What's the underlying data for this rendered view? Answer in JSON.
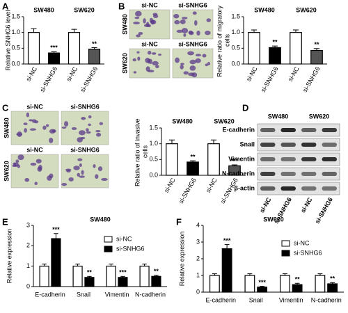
{
  "chart_data": [
    {
      "panel": "A",
      "type": "bar",
      "group_labels": [
        "SW480",
        "SW620"
      ],
      "y_label": "Relative SNHG6 level",
      "categories": [
        "si-NC",
        "si-SNHG6",
        "si-NC",
        "si-SNHG6"
      ],
      "values": [
        1.0,
        0.35,
        1.0,
        0.47
      ],
      "errors": [
        0.12,
        0.04,
        0.1,
        0.05
      ],
      "colors": [
        "#ffffff",
        "#000000",
        "#ffffff",
        "#555555"
      ],
      "annotations": [
        null,
        "***",
        null,
        "**"
      ],
      "ylim": [
        0,
        1.5
      ],
      "yticks": [
        {
          "value": 0,
          "label": "0.0"
        },
        {
          "value": 0.5,
          "label": "0.5"
        },
        {
          "value": 1,
          "label": "1.0"
        },
        {
          "value": 1.5,
          "label": "1.5"
        }
      ]
    },
    {
      "type": "bar",
      "group_labels": [
        "SW480",
        "SW620"
      ],
      "y_label": "Relative ratio of migratory cells",
      "categories": [
        "si-NC",
        "si-SNHG6",
        "si-NC",
        "si-SNHG6"
      ],
      "values": [
        1.0,
        0.52,
        1.0,
        0.43
      ],
      "errors": [
        0.08,
        0.05,
        0.08,
        0.06
      ],
      "colors": [
        "#ffffff",
        "#000000",
        "#ffffff",
        "#555555"
      ],
      "annotations": [
        null,
        "**",
        null,
        "**"
      ],
      "ylim": [
        0,
        1.5
      ],
      "yticks": [
        {
          "value": 0,
          "label": "0.0"
        },
        {
          "value": 0.5,
          "label": "0.5"
        },
        {
          "value": 1,
          "label": "1.0"
        },
        {
          "value": 1.5,
          "label": "1.5"
        }
      ]
    },
    {
      "type": "bar",
      "group_labels": [
        "SW480",
        "SW620"
      ],
      "y_label": "Relative ratio of invasive cells",
      "categories": [
        "si-NC",
        "si-SNHG6",
        "si-NC",
        "si-SNHG6"
      ],
      "values": [
        1.0,
        0.42,
        1.0,
        0.3
      ],
      "errors": [
        0.12,
        0.04,
        0.12,
        0.03
      ],
      "colors": [
        "#ffffff",
        "#000000",
        "#ffffff",
        "#555555"
      ],
      "annotations": [
        null,
        "**",
        null,
        "***"
      ],
      "ylim": [
        0,
        1.5
      ],
      "yticks": [
        {
          "value": 0,
          "label": "0.0"
        },
        {
          "value": 0.5,
          "label": "0.5"
        },
        {
          "value": 1,
          "label": "1.0"
        },
        {
          "value": 1.5,
          "label": "1.5"
        }
      ]
    },
    {
      "panel": "E",
      "type": "grouped_bar",
      "title": "SW480",
      "y_label": "Relative expression",
      "categories": [
        "E-cadherin",
        "Snail",
        "Vimentin",
        "N-cadherin"
      ],
      "series": [
        {
          "name": "si-NC",
          "color": "#ffffff",
          "values": [
            1,
            1,
            1,
            1
          ],
          "errors": [
            0.1,
            0.1,
            0.1,
            0.1
          ],
          "annotations": [
            null,
            null,
            null,
            null
          ]
        },
        {
          "name": "si-SNHG6",
          "color": "#000000",
          "values": [
            2.35,
            0.45,
            0.45,
            0.5
          ],
          "errors": [
            0.25,
            0.05,
            0.05,
            0.05
          ],
          "annotations": [
            "***",
            "**",
            "***",
            "**"
          ]
        }
      ],
      "ylim": [
        0,
        3
      ],
      "yticks": [
        0,
        1,
        2,
        3
      ],
      "legend": "upper right"
    },
    {
      "panel": "F",
      "type": "grouped_bar",
      "title": "SW620",
      "y_label": "Relative expression",
      "categories": [
        "E-cadherin",
        "Snail",
        "Vimentin",
        "N-cadherin"
      ],
      "series": [
        {
          "name": "si-NC",
          "color": "#ffffff",
          "values": [
            1,
            1,
            1,
            1
          ],
          "errors": [
            0.1,
            0.1,
            0.1,
            0.1
          ],
          "annotations": [
            null,
            null,
            null,
            null
          ]
        },
        {
          "name": "si-SNHG6",
          "color": "#000000",
          "values": [
            2.6,
            0.3,
            0.45,
            0.5
          ],
          "errors": [
            0.25,
            0.05,
            0.08,
            0.07
          ],
          "annotations": [
            "***",
            "***",
            "**",
            "**"
          ]
        }
      ],
      "ylim": [
        0,
        4
      ],
      "yticks": [
        0,
        1,
        2,
        3,
        4
      ],
      "legend": "upper right"
    }
  ],
  "images": [
    {
      "panel": "B",
      "columns": [
        "si-NC",
        "si-SNHG6"
      ],
      "rows": [
        "SW480",
        "SW620"
      ]
    },
    {
      "panel": "C",
      "columns": [
        "si-NC",
        "si-SNHG6"
      ],
      "rows": [
        "SW480",
        "SW620"
      ]
    }
  ],
  "blot": {
    "panel": "D",
    "groups": [
      "SW480",
      "SW620"
    ],
    "proteins": [
      "E-cadherin",
      "Snail",
      "Vimentin",
      "N-cadherin",
      "β-actin"
    ],
    "lanes": [
      "si-NC",
      "si-SNHG6",
      "si-NC",
      "si-SNHG6"
    ]
  }
}
